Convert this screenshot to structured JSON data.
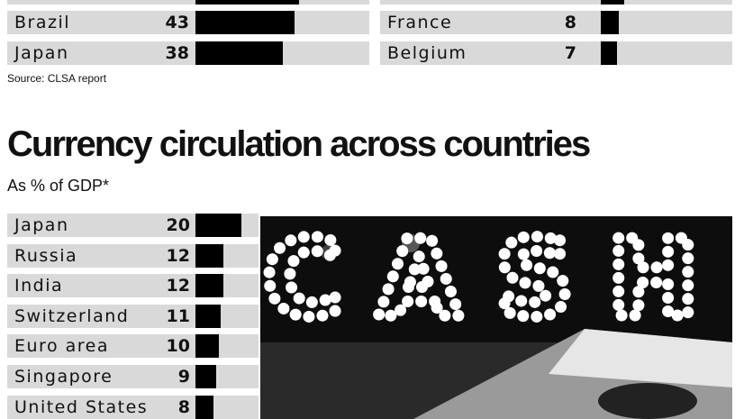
{
  "top_chart": {
    "left_rows": [
      {
        "label": "",
        "value": "",
        "bar_value": 45
      },
      {
        "label": "Brazil",
        "value": "43",
        "bar_value": 43
      },
      {
        "label": "Japan",
        "value": "38",
        "bar_value": 38
      }
    ],
    "right_rows": [
      {
        "label": "",
        "value": "",
        "bar_value": 10
      },
      {
        "label": "France",
        "value": "8",
        "bar_value": 8
      },
      {
        "label": "Belgium",
        "value": "7",
        "bar_value": 7
      }
    ],
    "source": "Source: CLSA report"
  },
  "chart_data": {
    "type": "bar",
    "orientation": "horizontal",
    "title": "Currency circulation across countries",
    "subtitle": "As % of GDP*",
    "categories": [
      "Japan",
      "Russia",
      "India",
      "Switzerland",
      "Euro area",
      "Singapore",
      "United States"
    ],
    "values": [
      20,
      12,
      12,
      11,
      10,
      9,
      8
    ],
    "bar_color": "#000000",
    "row_color": "#d9d9d9"
  },
  "photo": {
    "sign_text": "CASH"
  }
}
